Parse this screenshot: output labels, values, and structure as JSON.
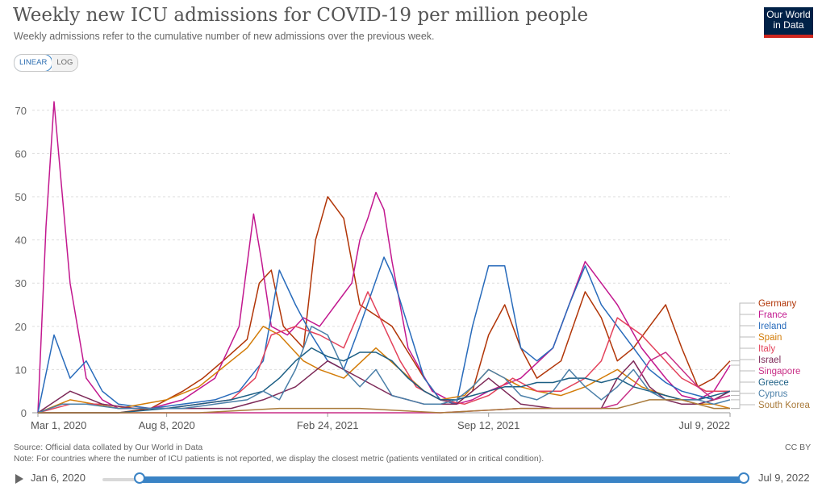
{
  "header": {
    "title": "Weekly new ICU admissions for COVID-19 per million people",
    "subtitle": "Weekly admissions refer to the cumulative number of new admissions over the previous week."
  },
  "logo": {
    "line1": "Our World",
    "line2": "in Data",
    "bg": "#002147",
    "accent": "#ce261e"
  },
  "controls": {
    "linear": "LINEAR",
    "log": "LOG",
    "selected": "LINEAR"
  },
  "footer": {
    "source": "Source: Official data collated by Our World in Data",
    "note": "Note: For countries where the number of ICU patients is not reported, we display the closest metric (patients ventilated or in critical condition).",
    "license": "CC BY"
  },
  "timeline": {
    "start": "Jan 6, 2020",
    "end": "Jul 9, 2022",
    "play_icon": "play-icon"
  },
  "chart_data": {
    "type": "line",
    "title": "Weekly new ICU admissions for COVID-19 per million people",
    "xlabel": "",
    "ylabel": "",
    "ylim": [
      0,
      75
    ],
    "yticks": [
      0,
      10,
      20,
      30,
      40,
      50,
      60,
      70
    ],
    "x_tick_labels": [
      "Mar 1, 2020",
      "Aug 8, 2020",
      "Feb 24, 2021",
      "Sep 12, 2021",
      "Jul 9, 2022"
    ],
    "x_tick_days": [
      0,
      160,
      360,
      560,
      860
    ],
    "x_range_days": [
      0,
      860
    ],
    "series": [
      {
        "name": "Germany",
        "color": "#b13507",
        "x": [
          0,
          100,
          140,
          180,
          205,
          230,
          260,
          275,
          290,
          305,
          330,
          345,
          360,
          380,
          400,
          440,
          480,
          500,
          520,
          540,
          560,
          580,
          600,
          620,
          650,
          680,
          700,
          720,
          740,
          760,
          780,
          800,
          820,
          840,
          860
        ],
        "values": [
          0,
          0,
          1,
          5,
          8,
          12,
          17,
          30,
          33,
          20,
          15,
          40,
          50,
          45,
          25,
          20,
          8,
          3,
          2,
          5,
          18,
          25,
          15,
          8,
          12,
          28,
          22,
          12,
          15,
          20,
          25,
          15,
          6,
          8,
          12
        ]
      },
      {
        "name": "France",
        "color": "#c2188f",
        "x": [
          0,
          10,
          20,
          40,
          60,
          80,
          100,
          140,
          180,
          220,
          250,
          268,
          278,
          290,
          310,
          330,
          350,
          370,
          390,
          400,
          410,
          420,
          430,
          440,
          460,
          490,
          520,
          540,
          560,
          600,
          640,
          660,
          680,
          700,
          720,
          750,
          780,
          800,
          820,
          840,
          860
        ],
        "values": [
          0,
          43,
          72,
          30,
          8,
          3,
          1,
          1,
          3,
          8,
          20,
          46,
          35,
          20,
          18,
          22,
          20,
          25,
          30,
          40,
          45,
          51,
          47,
          35,
          15,
          5,
          2,
          3,
          5,
          8,
          15,
          25,
          35,
          30,
          25,
          15,
          8,
          4,
          3,
          5,
          11
        ]
      },
      {
        "name": "Ireland",
        "color": "#286bbb",
        "x": [
          0,
          20,
          40,
          60,
          80,
          100,
          140,
          180,
          220,
          250,
          280,
          300,
          320,
          340,
          360,
          380,
          400,
          430,
          440,
          460,
          480,
          500,
          520,
          540,
          560,
          580,
          600,
          620,
          640,
          660,
          680,
          700,
          720,
          740,
          760,
          780,
          800,
          820,
          840,
          860
        ],
        "values": [
          0,
          18,
          8,
          12,
          5,
          2,
          1,
          2,
          3,
          5,
          12,
          33,
          25,
          18,
          12,
          10,
          20,
          36,
          32,
          20,
          8,
          3,
          2,
          20,
          34,
          34,
          15,
          12,
          15,
          25,
          34,
          25,
          20,
          15,
          10,
          7,
          5,
          4,
          3,
          5
        ]
      },
      {
        "name": "Spain",
        "color": "#d37c08",
        "x": [
          0,
          40,
          100,
          160,
          200,
          240,
          260,
          280,
          300,
          330,
          350,
          380,
          420,
          450,
          480,
          500,
          530,
          560,
          580,
          600,
          620,
          650,
          680,
          700,
          720,
          750,
          780,
          800,
          820,
          840,
          860
        ],
        "values": [
          0,
          3,
          1,
          3,
          6,
          12,
          15,
          20,
          18,
          12,
          10,
          8,
          15,
          10,
          5,
          3,
          4,
          10,
          8,
          6,
          5,
          4,
          6,
          8,
          10,
          6,
          4,
          3,
          2,
          2,
          1
        ]
      },
      {
        "name": "Italy",
        "color": "#e3425b",
        "x": [
          0,
          40,
          80,
          120,
          160,
          200,
          240,
          270,
          290,
          320,
          350,
          380,
          410,
          430,
          450,
          470,
          500,
          530,
          560,
          590,
          620,
          650,
          680,
          700,
          720,
          750,
          780,
          800,
          830,
          860
        ],
        "values": [
          0,
          2,
          2,
          1,
          1,
          2,
          3,
          8,
          18,
          20,
          18,
          15,
          28,
          20,
          12,
          6,
          3,
          2,
          4,
          8,
          5,
          5,
          8,
          12,
          22,
          18,
          12,
          8,
          5,
          5
        ]
      },
      {
        "name": "Israel",
        "color": "#7d2958",
        "x": [
          0,
          40,
          80,
          120,
          160,
          200,
          240,
          280,
          320,
          360,
          400,
          440,
          480,
          520,
          560,
          600,
          640,
          660,
          680,
          700,
          720,
          740,
          760,
          780,
          800,
          820,
          840,
          860
        ],
        "values": [
          0,
          5,
          2,
          1,
          1,
          1,
          1,
          3,
          6,
          12,
          8,
          4,
          2,
          2,
          8,
          2,
          1,
          1,
          1,
          1,
          8,
          12,
          6,
          3,
          2,
          2,
          3,
          5
        ]
      },
      {
        "name": "Singapore",
        "color": "#c82f86",
        "x": [
          0,
          100,
          200,
          300,
          400,
          500,
          600,
          650,
          700,
          720,
          740,
          760,
          780,
          800,
          820,
          840,
          860
        ],
        "values": [
          0,
          0,
          0,
          0,
          0,
          0,
          1,
          1,
          1,
          2,
          6,
          12,
          14,
          10,
          6,
          3,
          4
        ]
      },
      {
        "name": "Greece",
        "color": "#1b5e84",
        "x": [
          0,
          100,
          160,
          200,
          240,
          280,
          300,
          320,
          340,
          360,
          380,
          400,
          420,
          440,
          460,
          480,
          500,
          520,
          540,
          560,
          580,
          600,
          620,
          640,
          660,
          680,
          700,
          720,
          740,
          760,
          780,
          800,
          820,
          840,
          860
        ],
        "values": [
          0,
          0,
          1,
          2,
          3,
          5,
          8,
          12,
          15,
          13,
          12,
          14,
          14,
          12,
          8,
          5,
          3,
          3,
          4,
          5,
          6,
          6,
          7,
          7,
          8,
          8,
          7,
          8,
          6,
          5,
          4,
          3,
          3,
          4,
          5
        ]
      },
      {
        "name": "Cyprus",
        "color": "#4a7fa8",
        "x": [
          0,
          30,
          60,
          100,
          140,
          180,
          220,
          260,
          280,
          300,
          320,
          340,
          360,
          380,
          400,
          420,
          440,
          460,
          480,
          500,
          520,
          540,
          560,
          580,
          600,
          620,
          640,
          660,
          680,
          700,
          720,
          740,
          760,
          780,
          800,
          820,
          840,
          860
        ],
        "values": [
          0,
          2,
          2,
          1,
          1,
          1,
          2,
          3,
          5,
          3,
          10,
          20,
          18,
          10,
          6,
          10,
          4,
          3,
          2,
          2,
          3,
          6,
          10,
          8,
          4,
          3,
          5,
          10,
          6,
          3,
          6,
          10,
          5,
          3,
          3,
          3,
          2,
          3
        ]
      },
      {
        "name": "South Korea",
        "color": "#a97a3a",
        "x": [
          0,
          100,
          200,
          300,
          400,
          500,
          600,
          650,
          700,
          720,
          740,
          760,
          780,
          800,
          820,
          840,
          860
        ],
        "values": [
          0,
          0,
          0,
          1,
          1,
          0,
          1,
          1,
          1,
          1,
          2,
          3,
          3,
          3,
          2,
          1,
          1
        ]
      }
    ],
    "legend_position": "right",
    "grid": "horizontal-dashed"
  }
}
